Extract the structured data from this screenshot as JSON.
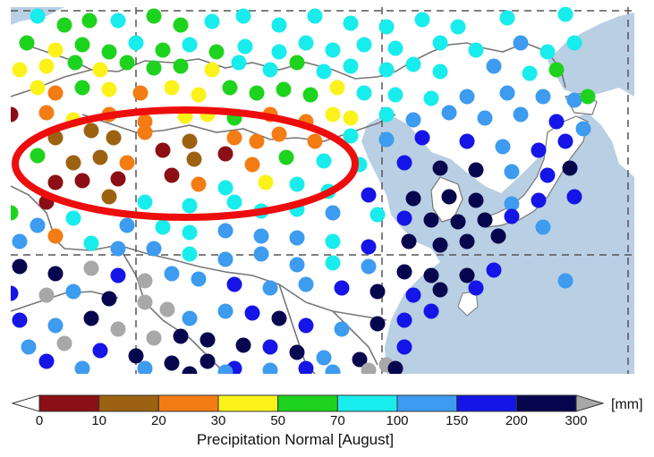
{
  "legend": {
    "title": "Precipitation Normal [August]",
    "unit": "[mm]",
    "ticks": [
      "0",
      "10",
      "20",
      "30",
      "50",
      "70",
      "100",
      "150",
      "200",
      "300"
    ],
    "bins": [
      {
        "from": "0",
        "to": "10",
        "color": "#8b0f14"
      },
      {
        "from": "10",
        "to": "20",
        "color": "#9c6212"
      },
      {
        "from": "20",
        "to": "30",
        "color": "#f47c14"
      },
      {
        "from": "30",
        "to": "50",
        "color": "#fbf21a"
      },
      {
        "from": "50",
        "to": "70",
        "color": "#1ed31e"
      },
      {
        "from": "70",
        "to": "100",
        "color": "#19ecec"
      },
      {
        "from": "100",
        "to": "150",
        "color": "#3d9bf0"
      },
      {
        "from": "150",
        "to": "200",
        "color": "#1515e8"
      },
      {
        "from": "200",
        "to": "300",
        "color": "#06064f"
      }
    ],
    "under_color": "#ffffff",
    "over_color": "#a8a8a8"
  },
  "map": {
    "ocean_color": "#b9cfe4",
    "land_color": "#ffffff",
    "border_color": "#777777",
    "gridline_style": "dashed",
    "highlight_color": "#ee0d0d"
  }
}
